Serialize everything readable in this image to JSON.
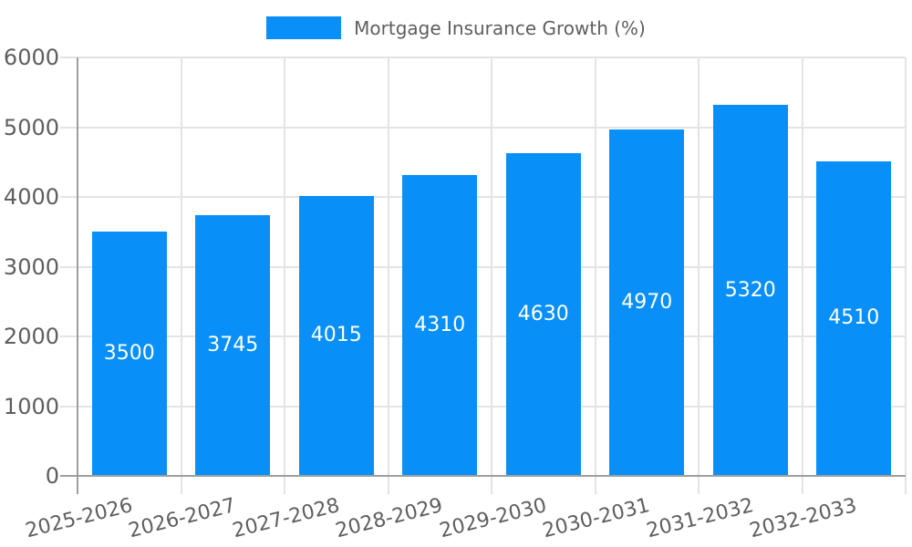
{
  "legend": {
    "label": "Mortgage Insurance Growth (%)"
  },
  "colors": {
    "bar": "#0890f8",
    "grid": "#e4e4e6",
    "axis": "#9e9e9e",
    "tick_text": "#5e5e5e",
    "bar_label_text": "#ffffff",
    "background": "#ffffff"
  },
  "chart_data": {
    "type": "bar",
    "title": "",
    "categories": [
      "2025-2026",
      "2026-2027",
      "2027-2028",
      "2028-2029",
      "2029-2030",
      "2030-2031",
      "2031-2032",
      "2032-2033"
    ],
    "values": [
      3500,
      3745,
      4015,
      4310,
      4630,
      4970,
      5320,
      4510
    ],
    "series_name": "Mortgage Insurance Growth (%)",
    "bar_value_labels": [
      "3500",
      "3745",
      "4015",
      "4310",
      "4630",
      "4970",
      "5320",
      "4510"
    ],
    "ytick_labels": [
      "0",
      "1000",
      "2000",
      "3000",
      "4000",
      "5000",
      "6000"
    ],
    "yticks": [
      0,
      1000,
      2000,
      3000,
      4000,
      5000,
      6000
    ],
    "ylim": [
      0,
      6000
    ],
    "xlabel": "",
    "ylabel": "",
    "grid": "both",
    "legend_position": "top-center",
    "bar_labels_position": "center",
    "x_label_rotation_deg": -14
  }
}
